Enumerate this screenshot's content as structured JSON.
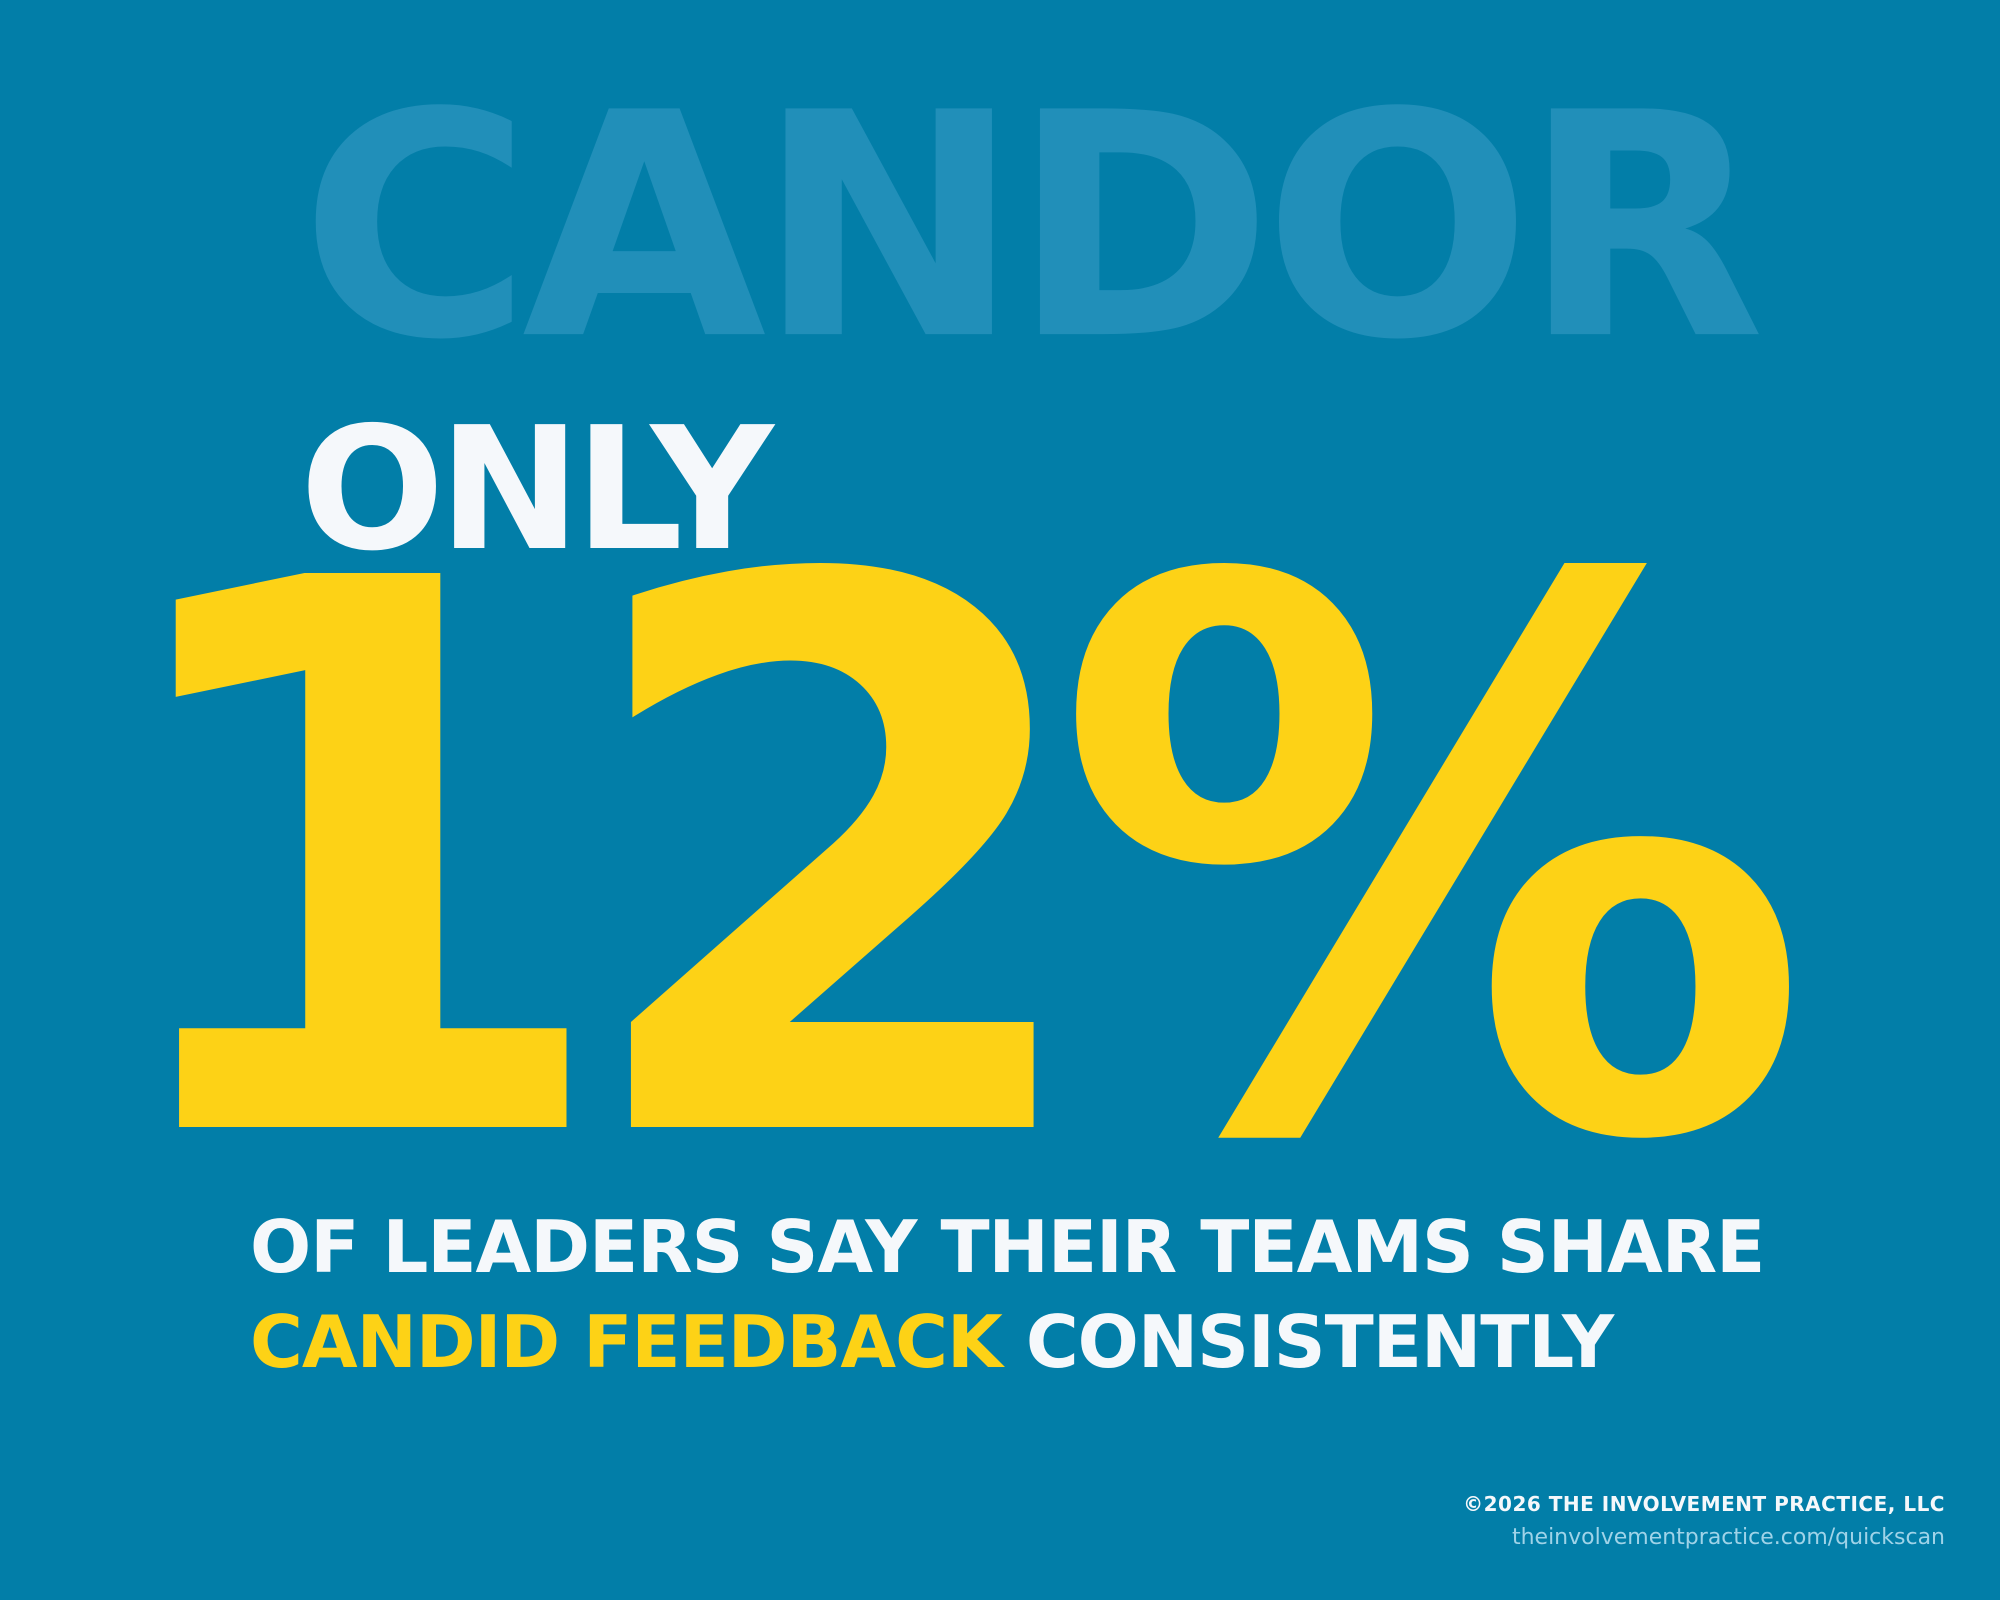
{
  "background_text": "CANDOR",
  "headline_prefix": "ONLY",
  "statistic": "12%",
  "statement": {
    "line1": "OF LEADERS SAY THEIR TEAMS SHARE",
    "highlight": "CANDID FEEDBACK",
    "line2_rest": "CONSISTENTLY"
  },
  "footer": {
    "copyright": "©2026 THE INVOLVEMENT PRACTICE, LLC",
    "url": "theinvolvementpractice.com/quickscan"
  },
  "colors": {
    "background": "#027ea8",
    "watermark": "#218fb9",
    "accent_yellow": "#fdd216",
    "text_white": "#f5f8fb",
    "url_light_blue": "#9fd3e8"
  }
}
